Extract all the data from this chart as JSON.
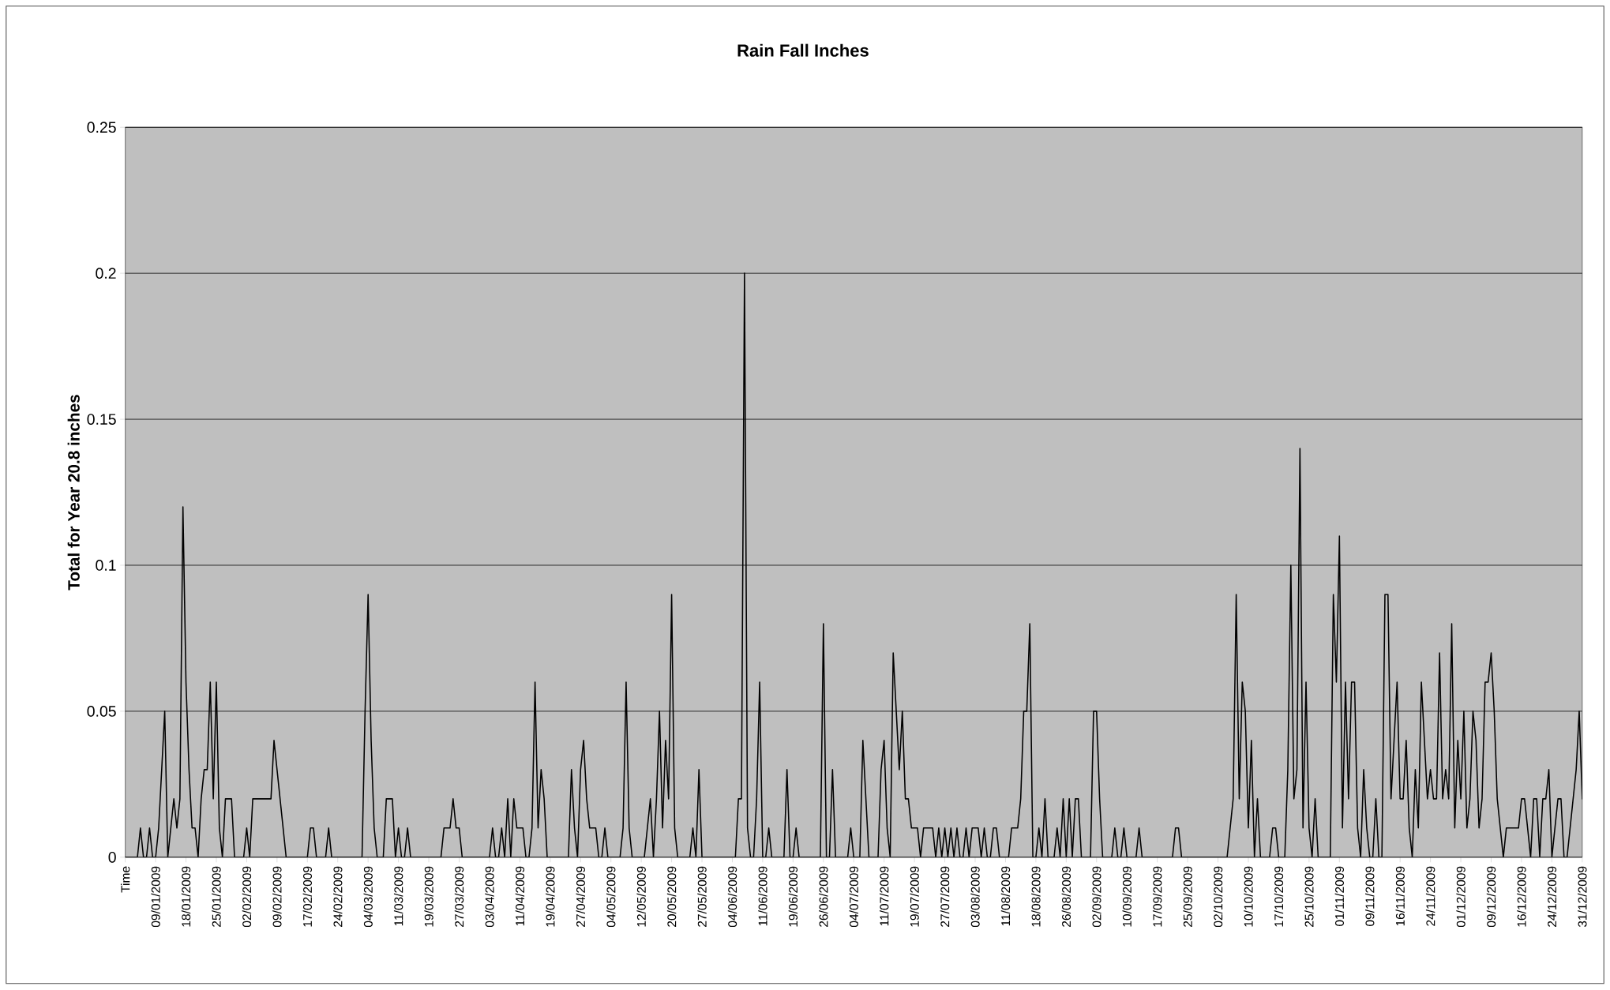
{
  "chart_data": {
    "type": "line",
    "title": "Rain Fall Inches",
    "ylabel": "Total for Year 20.8 inches",
    "color": "#000000",
    "grid": "y",
    "ylim": [
      0,
      0.25
    ],
    "yticks": [
      0,
      0.05,
      0.1,
      0.15,
      0.2,
      0.25
    ],
    "categories": [
      "Time",
      null,
      null,
      null,
      null,
      null,
      null,
      null,
      null,
      null,
      "09/01/2009",
      null,
      null,
      null,
      null,
      null,
      null,
      null,
      null,
      null,
      "18/01/2009",
      null,
      null,
      null,
      null,
      null,
      null,
      null,
      null,
      null,
      "25/01/2009",
      null,
      null,
      null,
      null,
      null,
      null,
      null,
      null,
      null,
      "02/02/2009",
      null,
      null,
      null,
      null,
      null,
      null,
      null,
      null,
      null,
      "09/02/2009",
      null,
      null,
      null,
      null,
      null,
      null,
      null,
      null,
      null,
      "17/02/2009",
      null,
      null,
      null,
      null,
      null,
      null,
      null,
      null,
      null,
      "24/02/2009",
      null,
      null,
      null,
      null,
      null,
      null,
      null,
      null,
      null,
      "04/03/2009",
      null,
      null,
      null,
      null,
      null,
      null,
      null,
      null,
      null,
      "11/03/2009",
      null,
      null,
      null,
      null,
      null,
      null,
      null,
      null,
      null,
      "19/03/2009",
      null,
      null,
      null,
      null,
      null,
      null,
      null,
      null,
      null,
      "27/03/2009",
      null,
      null,
      null,
      null,
      null,
      null,
      null,
      null,
      null,
      "03/04/2009",
      null,
      null,
      null,
      null,
      null,
      null,
      null,
      null,
      null,
      "11/04/2009",
      null,
      null,
      null,
      null,
      null,
      null,
      null,
      null,
      null,
      "19/04/2009",
      null,
      null,
      null,
      null,
      null,
      null,
      null,
      null,
      null,
      "27/04/2009",
      null,
      null,
      null,
      null,
      null,
      null,
      null,
      null,
      null,
      "04/05/2009",
      null,
      null,
      null,
      null,
      null,
      null,
      null,
      null,
      null,
      "12/05/2009",
      null,
      null,
      null,
      null,
      null,
      null,
      null,
      null,
      null,
      "20/05/2009",
      null,
      null,
      null,
      null,
      null,
      null,
      null,
      null,
      null,
      "27/05/2009",
      null,
      null,
      null,
      null,
      null,
      null,
      null,
      null,
      null,
      "04/06/2009",
      null,
      null,
      null,
      null,
      null,
      null,
      null,
      null,
      null,
      "11/06/2009",
      null,
      null,
      null,
      null,
      null,
      null,
      null,
      null,
      null,
      "19/06/2009",
      null,
      null,
      null,
      null,
      null,
      null,
      null,
      null,
      null,
      "26/06/2009",
      null,
      null,
      null,
      null,
      null,
      null,
      null,
      null,
      null,
      "04/07/2009",
      null,
      null,
      null,
      null,
      null,
      null,
      null,
      null,
      null,
      "11/07/2009",
      null,
      null,
      null,
      null,
      null,
      null,
      null,
      null,
      null,
      "19/07/2009",
      null,
      null,
      null,
      null,
      null,
      null,
      null,
      null,
      null,
      "27/07/2009",
      null,
      null,
      null,
      null,
      null,
      null,
      null,
      null,
      null,
      "03/08/2009",
      null,
      null,
      null,
      null,
      null,
      null,
      null,
      null,
      null,
      "11/08/2009",
      null,
      null,
      null,
      null,
      null,
      null,
      null,
      null,
      null,
      "18/08/2009",
      null,
      null,
      null,
      null,
      null,
      null,
      null,
      null,
      null,
      "26/08/2009",
      null,
      null,
      null,
      null,
      null,
      null,
      null,
      null,
      null,
      "02/09/2009",
      null,
      null,
      null,
      null,
      null,
      null,
      null,
      null,
      null,
      "10/09/2009",
      null,
      null,
      null,
      null,
      null,
      null,
      null,
      null,
      null,
      "17/09/2009",
      null,
      null,
      null,
      null,
      null,
      null,
      null,
      null,
      null,
      "25/09/2009",
      null,
      null,
      null,
      null,
      null,
      null,
      null,
      null,
      null,
      "02/10/2009",
      null,
      null,
      null,
      null,
      null,
      null,
      null,
      null,
      null,
      "10/10/2009",
      null,
      null,
      null,
      null,
      null,
      null,
      null,
      null,
      null,
      "17/10/2009",
      null,
      null,
      null,
      null,
      null,
      null,
      null,
      null,
      null,
      "25/10/2009",
      null,
      null,
      null,
      null,
      null,
      null,
      null,
      null,
      null,
      "01/11/2009",
      null,
      null,
      null,
      null,
      null,
      null,
      null,
      null,
      null,
      "09/11/2009",
      null,
      null,
      null,
      null,
      null,
      null,
      null,
      null,
      null,
      "16/11/2009",
      null,
      null,
      null,
      null,
      null,
      null,
      null,
      null,
      null,
      "24/11/2009",
      null,
      null,
      null,
      null,
      null,
      null,
      null,
      null,
      null,
      "01/12/2009",
      null,
      null,
      null,
      null,
      null,
      null,
      null,
      null,
      null,
      "09/12/2009",
      null,
      null,
      null,
      null,
      null,
      null,
      null,
      null,
      null,
      "16/12/2009",
      null,
      null,
      null,
      null,
      null,
      null,
      null,
      null,
      null,
      "24/12/2009",
      null,
      null,
      null,
      null,
      null,
      null,
      null,
      null,
      null,
      "31/12/2009"
    ],
    "values": [
      0,
      0,
      0,
      0,
      0,
      0.01,
      0,
      0,
      0.01,
      0,
      0,
      0.01,
      0.03,
      0.05,
      0,
      0.01,
      0.02,
      0.01,
      0.02,
      0.12,
      0.06,
      0.03,
      0.01,
      0.01,
      0,
      0.02,
      0.03,
      0.03,
      0.06,
      0.02,
      0.06,
      0.01,
      0,
      0.02,
      0.02,
      0.02,
      0,
      0,
      0,
      0,
      0.01,
      0,
      0.02,
      0.02,
      0.02,
      0.02,
      0.02,
      0.02,
      0.02,
      0.04,
      0.03,
      0.02,
      0.01,
      0,
      0,
      0,
      0,
      0,
      0,
      0,
      0,
      0.01,
      0.01,
      0,
      0,
      0,
      0,
      0.01,
      0,
      0,
      0,
      0,
      0,
      0,
      0,
      0,
      0,
      0,
      0,
      0.05,
      0.09,
      0.04,
      0.01,
      0,
      0,
      0,
      0.02,
      0.02,
      0.02,
      0,
      0.01,
      0,
      0,
      0.01,
      0,
      0,
      0,
      0,
      0,
      0,
      0,
      0,
      0,
      0,
      0,
      0.01,
      0.01,
      0.01,
      0.02,
      0.01,
      0.01,
      0,
      0,
      0,
      0,
      0,
      0,
      0,
      0,
      0,
      0,
      0.01,
      0,
      0,
      0.01,
      0,
      0.02,
      0,
      0.02,
      0.01,
      0.01,
      0.01,
      0,
      0,
      0.01,
      0.06,
      0.01,
      0.03,
      0.02,
      0,
      0,
      0,
      0,
      0,
      0,
      0,
      0,
      0.03,
      0.01,
      0,
      0.03,
      0.04,
      0.02,
      0.01,
      0.01,
      0.01,
      0,
      0,
      0.01,
      0,
      0,
      0,
      0,
      0,
      0.01,
      0.06,
      0.01,
      0,
      0,
      0,
      0,
      0,
      0.01,
      0.02,
      0,
      0.02,
      0.05,
      0.01,
      0.04,
      0.02,
      0.09,
      0.01,
      0,
      0,
      0,
      0,
      0,
      0.01,
      0,
      0.03,
      0,
      0,
      0,
      0,
      0,
      0,
      0,
      0,
      0,
      0,
      0,
      0,
      0.02,
      0.02,
      0.2,
      0.01,
      0,
      0,
      0.02,
      0.06,
      0,
      0,
      0.01,
      0,
      0,
      0,
      0,
      0,
      0.03,
      0,
      0,
      0.01,
      0,
      0,
      0,
      0,
      0,
      0,
      0,
      0,
      0.08,
      0,
      0,
      0.03,
      0,
      0,
      0,
      0,
      0,
      0.01,
      0,
      0,
      0,
      0.04,
      0.02,
      0,
      0,
      0,
      0,
      0.03,
      0.04,
      0.01,
      0,
      0.07,
      0.05,
      0.03,
      0.05,
      0.02,
      0.02,
      0.01,
      0.01,
      0.01,
      0,
      0.01,
      0.01,
      0.01,
      0.01,
      0,
      0.01,
      0,
      0.01,
      0,
      0.01,
      0,
      0.01,
      0,
      0,
      0.01,
      0,
      0.01,
      0.01,
      0.01,
      0,
      0.01,
      0,
      0,
      0.01,
      0.01,
      0,
      0,
      0,
      0,
      0.01,
      0.01,
      0.01,
      0.02,
      0.05,
      0.05,
      0.08,
      0,
      0,
      0.01,
      0,
      0.02,
      0,
      0,
      0,
      0.01,
      0,
      0.02,
      0,
      0.02,
      0,
      0.02,
      0.02,
      0,
      0,
      0,
      0,
      0.05,
      0.05,
      0.02,
      0,
      0,
      0,
      0,
      0.01,
      0,
      0,
      0.01,
      0,
      0,
      0,
      0,
      0.01,
      0,
      0,
      0,
      0,
      0,
      0,
      0,
      0,
      0,
      0,
      0,
      0.01,
      0.01,
      0,
      0,
      0,
      0,
      0,
      0,
      0,
      0,
      0,
      0,
      0,
      0,
      0,
      0,
      0,
      0,
      0.01,
      0.02,
      0.09,
      0.02,
      0.06,
      0.05,
      0.01,
      0.04,
      0,
      0.02,
      0,
      0,
      0,
      0,
      0.01,
      0.01,
      0,
      0,
      0,
      0.03,
      0.1,
      0.02,
      0.03,
      0.14,
      0.01,
      0.06,
      0.01,
      0,
      0.02,
      0,
      0,
      0,
      0,
      0,
      0.09,
      0.06,
      0.11,
      0.01,
      0.06,
      0.02,
      0.06,
      0.06,
      0.01,
      0,
      0.03,
      0.01,
      0,
      0,
      0.02,
      0,
      0,
      0.09,
      0.09,
      0.02,
      0.04,
      0.06,
      0.02,
      0.02,
      0.04,
      0.01,
      0,
      0.03,
      0.01,
      0.06,
      0.04,
      0.02,
      0.03,
      0.02,
      0.02,
      0.07,
      0.02,
      0.03,
      0.02,
      0.08,
      0.01,
      0.04,
      0.02,
      0.05,
      0.01,
      0.02,
      0.05,
      0.04,
      0.01,
      0.02,
      0.06,
      0.06,
      0.07,
      0.05,
      0.02,
      0.01,
      0,
      0.01,
      0.01,
      0.01,
      0.01,
      0.01,
      0.02,
      0.02,
      0.01,
      0,
      0.02,
      0.02,
      0,
      0.02,
      0.02,
      0.03,
      0,
      0.01,
      0.02,
      0.02,
      0,
      0,
      0.01,
      0.02,
      0.03,
      0.05,
      0.02
    ]
  }
}
